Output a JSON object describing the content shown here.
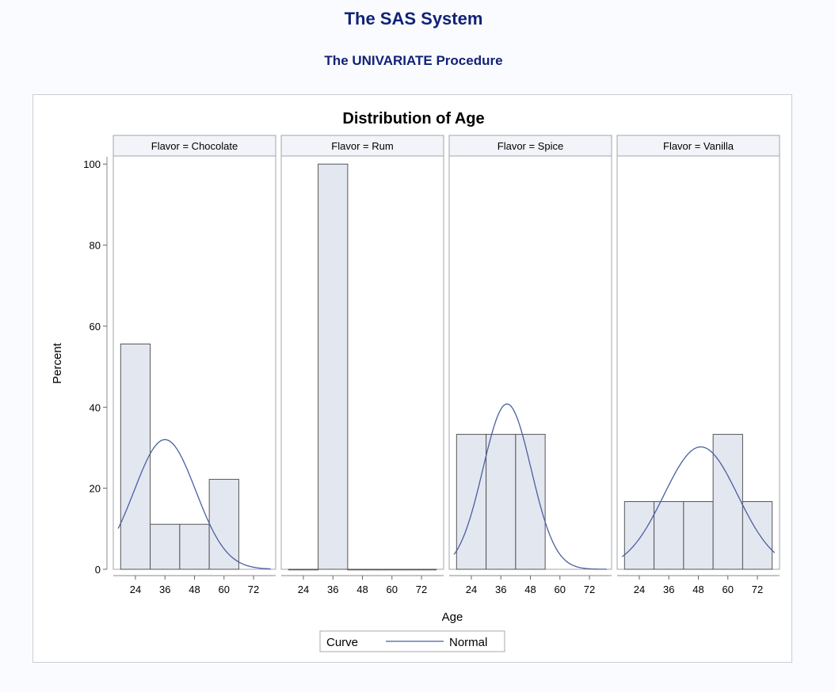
{
  "header": {
    "system_title": "The SAS System",
    "procedure_title": "The UNIVARIATE Procedure"
  },
  "colors": {
    "title": "#112277",
    "bar_fill": "#e3e7f0",
    "bar_stroke": "#555555",
    "curve": "#4a5fa0",
    "panel_header_fill": "#f3f4f9"
  },
  "chart_data": {
    "type": "bar",
    "title": "Distribution of Age",
    "xlabel": "Age",
    "ylabel": "Percent",
    "ylim": [
      0,
      102
    ],
    "y_ticks": [
      0,
      20,
      40,
      60,
      80,
      100
    ],
    "xlim": [
      15,
      81
    ],
    "x_ticks": [
      24,
      36,
      48,
      60,
      72
    ],
    "bin_width": 12,
    "legend": {
      "title": "Curve",
      "entries": [
        "Normal"
      ],
      "position": "bottom"
    },
    "panels": [
      {
        "label": "Flavor = Chocolate",
        "bins": [
          24,
          36,
          48,
          60
        ],
        "values": [
          55.6,
          11.1,
          11.1,
          22.2
        ],
        "normal": {
          "mean": 36,
          "sd": 12.5,
          "peak": 32,
          "x_start": 17
        }
      },
      {
        "label": "Flavor = Rum",
        "bins": [
          24,
          36,
          48,
          60,
          72
        ],
        "values": [
          0,
          100,
          0,
          0,
          0
        ],
        "normal": null
      },
      {
        "label": "Flavor = Spice",
        "bins": [
          24,
          36,
          48
        ],
        "values": [
          33.3,
          33.3,
          33.3
        ],
        "normal": {
          "mean": 38.5,
          "sd": 9.8,
          "peak": 40.8,
          "x_start": 17
        }
      },
      {
        "label": "Flavor = Vanilla",
        "bins": [
          24,
          36,
          48,
          60,
          72
        ],
        "values": [
          16.7,
          16.7,
          16.7,
          33.3,
          16.7
        ],
        "normal": {
          "mean": 49,
          "sd": 15,
          "peak": 30.2,
          "x_start": 17
        }
      }
    ]
  }
}
